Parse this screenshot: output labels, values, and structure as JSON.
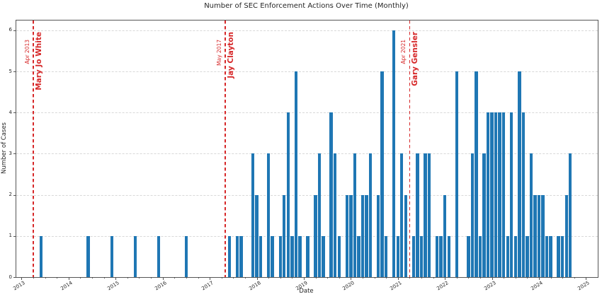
{
  "chart_data": {
    "type": "bar",
    "title": "Number of SEC Enforcement Actions Over Time (Monthly)",
    "xlabel": "Date",
    "ylabel": "Number of Cases",
    "bar_color": "#1f77b4",
    "event_line_color": "#d62728",
    "grid": "horizontal-dashed-light",
    "legend": "none",
    "x_tick_years": [
      2013,
      2014,
      2015,
      2016,
      2017,
      2018,
      2019,
      2020,
      2021,
      2022,
      2023,
      2024,
      2025
    ],
    "y_ticks": [
      0,
      1,
      2,
      3,
      4,
      5,
      6
    ],
    "ylim": [
      0,
      6.24
    ],
    "xlim_months_from_jan2013": [
      -1.35,
      147.0
    ],
    "x_start_year": 2013,
    "monthly_counts": [
      [
        "2013-06",
        1
      ],
      [
        "2014-06",
        1
      ],
      [
        "2014-12",
        1
      ],
      [
        "2015-06",
        1
      ],
      [
        "2015-12",
        1
      ],
      [
        "2016-07",
        1
      ],
      [
        "2017-06",
        1
      ],
      [
        "2017-08",
        1
      ],
      [
        "2017-09",
        1
      ],
      [
        "2017-12",
        3
      ],
      [
        "2018-01",
        2
      ],
      [
        "2018-02",
        1
      ],
      [
        "2018-04",
        3
      ],
      [
        "2018-05",
        1
      ],
      [
        "2018-07",
        1
      ],
      [
        "2018-08",
        2
      ],
      [
        "2018-09",
        4
      ],
      [
        "2018-10",
        1
      ],
      [
        "2018-11",
        5
      ],
      [
        "2018-12",
        1
      ],
      [
        "2019-02",
        1
      ],
      [
        "2019-04",
        2
      ],
      [
        "2019-05",
        3
      ],
      [
        "2019-06",
        1
      ],
      [
        "2019-08",
        4
      ],
      [
        "2019-09",
        3
      ],
      [
        "2019-10",
        1
      ],
      [
        "2019-12",
        2
      ],
      [
        "2020-01",
        2
      ],
      [
        "2020-02",
        3
      ],
      [
        "2020-03",
        1
      ],
      [
        "2020-04",
        2
      ],
      [
        "2020-05",
        2
      ],
      [
        "2020-06",
        3
      ],
      [
        "2020-08",
        2
      ],
      [
        "2020-09",
        5
      ],
      [
        "2020-10",
        1
      ],
      [
        "2020-12",
        6
      ],
      [
        "2021-01",
        1
      ],
      [
        "2021-02",
        3
      ],
      [
        "2021-03",
        2
      ],
      [
        "2021-05",
        1
      ],
      [
        "2021-06",
        3
      ],
      [
        "2021-07",
        1
      ],
      [
        "2021-08",
        3
      ],
      [
        "2021-09",
        3
      ],
      [
        "2021-11",
        1
      ],
      [
        "2021-12",
        1
      ],
      [
        "2022-01",
        2
      ],
      [
        "2022-02",
        1
      ],
      [
        "2022-04",
        5
      ],
      [
        "2022-07",
        1
      ],
      [
        "2022-08",
        3
      ],
      [
        "2022-09",
        5
      ],
      [
        "2022-10",
        1
      ],
      [
        "2022-11",
        3
      ],
      [
        "2022-12",
        4
      ],
      [
        "2023-01",
        4
      ],
      [
        "2023-02",
        4
      ],
      [
        "2023-03",
        4
      ],
      [
        "2023-04",
        4
      ],
      [
        "2023-05",
        1
      ],
      [
        "2023-06",
        4
      ],
      [
        "2023-07",
        1
      ],
      [
        "2023-08",
        5
      ],
      [
        "2023-09",
        4
      ],
      [
        "2023-10",
        1
      ],
      [
        "2023-11",
        3
      ],
      [
        "2023-12",
        2
      ],
      [
        "2024-01",
        2
      ],
      [
        "2024-02",
        2
      ],
      [
        "2024-03",
        1
      ],
      [
        "2024-04",
        1
      ],
      [
        "2024-06",
        1
      ],
      [
        "2024-07",
        1
      ],
      [
        "2024-08",
        2
      ],
      [
        "2024-09",
        3
      ]
    ],
    "annotations": [
      {
        "month": "2013-04",
        "date_label": "Apr 2013",
        "name": "Mary Jo White"
      },
      {
        "month": "2017-05",
        "date_label": "May 2017",
        "name": "Jay Clayton"
      },
      {
        "month": "2021-04",
        "date_label": "Apr 2021",
        "name": "Gary Gensler"
      }
    ]
  }
}
